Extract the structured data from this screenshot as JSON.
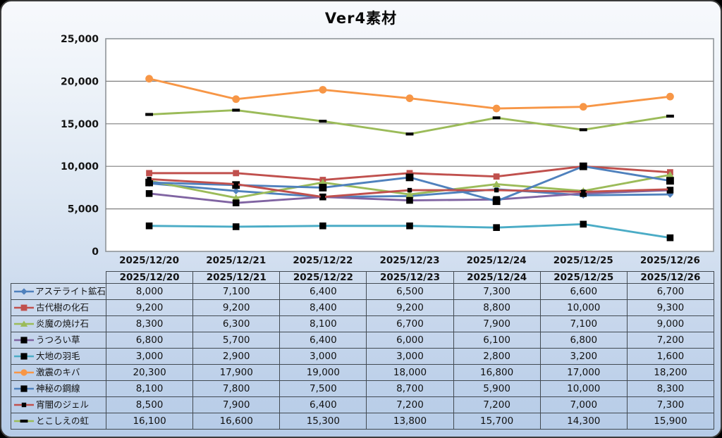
{
  "chart_data": {
    "type": "line",
    "title": "Ver4素材",
    "categories": [
      "2025/12/20",
      "2025/12/21",
      "2025/12/22",
      "2025/12/23",
      "2025/12/24",
      "2025/12/25",
      "2025/12/26"
    ],
    "series": [
      {
        "name": "アステライト鉱石",
        "color": "#4F81BD",
        "marker": "diamond",
        "marker_color": "#4F81BD",
        "marker_size": 4.8,
        "values": [
          8000,
          7100,
          6400,
          6500,
          7300,
          6600,
          6700
        ]
      },
      {
        "name": "古代樹の化石",
        "color": "#C0504D",
        "marker": "square",
        "marker_color": "#C0504D",
        "marker_size": 4.4,
        "values": [
          9200,
          9200,
          8400,
          9200,
          8800,
          10000,
          9300
        ]
      },
      {
        "name": "炎魔の焼け石",
        "color": "#9BBB59",
        "marker": "triangle",
        "marker_color": "#9BBB59",
        "marker_size": 5.2,
        "values": [
          8300,
          6300,
          8100,
          6700,
          7900,
          7100,
          9000
        ]
      },
      {
        "name": "うつろい草",
        "color": "#8064A2",
        "marker": "square",
        "marker_color": "#000000",
        "marker_size": 4.8,
        "values": [
          6800,
          5700,
          6400,
          6000,
          6100,
          6800,
          7200
        ]
      },
      {
        "name": "大地の羽毛",
        "color": "#4BACC6",
        "marker": "square",
        "marker_color": "#000000",
        "marker_size": 4.8,
        "values": [
          3000,
          2900,
          3000,
          3000,
          2800,
          3200,
          1600
        ]
      },
      {
        "name": "激震のキバ",
        "color": "#F79646",
        "marker": "circle",
        "marker_color": "#F79646",
        "marker_size": 5.4,
        "values": [
          20300,
          17900,
          19000,
          18000,
          16800,
          17000,
          18200
        ]
      },
      {
        "name": "神秘の鋼線",
        "color": "#4F81BD",
        "marker": "square",
        "marker_color": "#000000",
        "marker_size": 5.4,
        "values": [
          8100,
          7800,
          7500,
          8700,
          5900,
          10000,
          8300
        ]
      },
      {
        "name": "宵闇のジェル",
        "color": "#C0504D",
        "marker": "dot",
        "marker_color": "#000000",
        "marker_size": 3.2,
        "values": [
          8500,
          7900,
          6400,
          7200,
          7200,
          7000,
          7300
        ]
      },
      {
        "name": "とこしえの虹",
        "color": "#9BBB59",
        "marker": "dash",
        "marker_color": "#000000",
        "marker_size": 3.2,
        "values": [
          16100,
          16600,
          15300,
          13800,
          15700,
          14300,
          15900
        ]
      }
    ],
    "ylim": [
      0,
      25000
    ],
    "y_tick_step": 5000,
    "y_ticks": [
      "0",
      "5,000",
      "10,000",
      "15,000",
      "20,000",
      "25,000"
    ],
    "grid": true,
    "legend_position": "table-left",
    "colors": {
      "plot_bg": "#FFFFFF",
      "plot_border": "#8F9499",
      "grid_line": "#7F7F7F",
      "text": "#141414",
      "table_border": "#424A52",
      "card_gradient_top": "#F7F9FC",
      "card_gradient_bottom": "#B5CBE7"
    }
  }
}
